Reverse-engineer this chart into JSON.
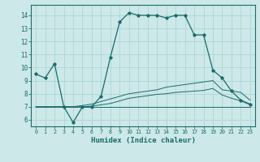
{
  "xlabel": "Humidex (Indice chaleur)",
  "xlim": [
    -0.5,
    23.5
  ],
  "ylim": [
    5.5,
    14.8
  ],
  "yticks": [
    6,
    7,
    8,
    9,
    10,
    11,
    12,
    13,
    14
  ],
  "xticks": [
    0,
    1,
    2,
    3,
    4,
    5,
    6,
    7,
    8,
    9,
    10,
    11,
    12,
    13,
    14,
    15,
    16,
    17,
    18,
    19,
    20,
    21,
    22,
    23
  ],
  "bg_color": "#cde8e8",
  "grid_color": "#b0d8d8",
  "line_color": "#1a6b6b",
  "line1_x": [
    0,
    1,
    2,
    3,
    4,
    5,
    6,
    7,
    8,
    9,
    10,
    11,
    12,
    13,
    14,
    15,
    16,
    17,
    18,
    19,
    20,
    21,
    22,
    23
  ],
  "line1_y": [
    9.5,
    9.2,
    10.3,
    7.0,
    5.8,
    7.0,
    7.0,
    7.8,
    10.8,
    13.5,
    14.2,
    14.0,
    14.0,
    14.0,
    13.8,
    14.0,
    14.0,
    12.5,
    12.5,
    9.8,
    9.2,
    8.2,
    7.5,
    7.2
  ],
  "line2_x": [
    0,
    1,
    2,
    3,
    4,
    5,
    6,
    7,
    8,
    9,
    10,
    11,
    12,
    13,
    14,
    15,
    16,
    17,
    18,
    19,
    20,
    21,
    22,
    23
  ],
  "line2_y": [
    7.0,
    7.0,
    7.0,
    7.0,
    7.0,
    7.0,
    7.0,
    7.0,
    7.0,
    7.0,
    7.0,
    7.0,
    7.0,
    7.0,
    7.0,
    7.0,
    7.0,
    7.0,
    7.0,
    7.0,
    7.0,
    7.0,
    7.0,
    7.0
  ],
  "line3_x": [
    0,
    1,
    2,
    3,
    4,
    5,
    6,
    7,
    8,
    9,
    10,
    11,
    12,
    13,
    14,
    15,
    16,
    17,
    18,
    19,
    20,
    21,
    22,
    23
  ],
  "line3_y": [
    7.0,
    7.0,
    7.0,
    7.0,
    7.0,
    7.1,
    7.2,
    7.4,
    7.6,
    7.8,
    8.0,
    8.1,
    8.2,
    8.3,
    8.5,
    8.6,
    8.7,
    8.8,
    8.9,
    9.0,
    8.3,
    8.2,
    8.1,
    7.5
  ],
  "line4_x": [
    0,
    1,
    2,
    3,
    4,
    5,
    6,
    7,
    8,
    9,
    10,
    11,
    12,
    13,
    14,
    15,
    16,
    17,
    18,
    19,
    20,
    21,
    22,
    23
  ],
  "line4_y": [
    7.0,
    7.0,
    7.0,
    7.0,
    7.0,
    7.0,
    7.05,
    7.15,
    7.25,
    7.45,
    7.65,
    7.75,
    7.85,
    7.95,
    8.0,
    8.1,
    8.15,
    8.2,
    8.25,
    8.4,
    7.9,
    7.65,
    7.45,
    7.15
  ],
  "ylabel_fontsize": 5.5,
  "xlabel_fontsize": 6.5,
  "xtick_fontsize": 4.8,
  "ytick_fontsize": 5.5
}
